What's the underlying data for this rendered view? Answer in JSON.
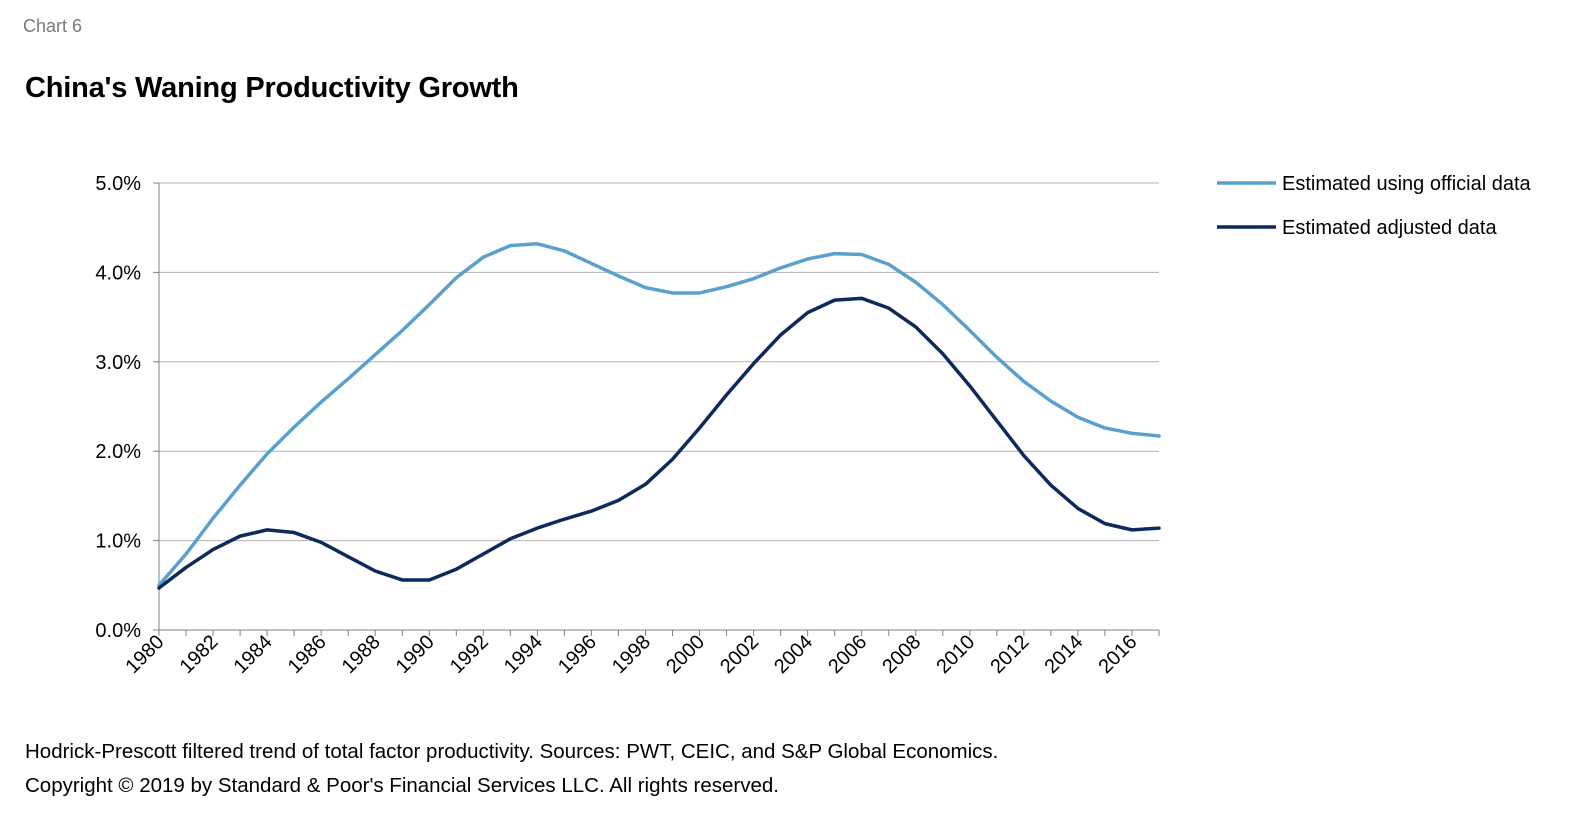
{
  "header": {
    "chart_label": "Chart 6",
    "title": "China's Waning Productivity Growth"
  },
  "footer": {
    "note": "Hodrick-Prescott filtered trend of total factor productivity. Sources: PWT, CEIC, and S&P Global Economics.",
    "copyright": "Copyright © 2019 by Standard & Poor's Financial Services LLC. All rights reserved."
  },
  "colors": {
    "official": "#5aa0cc",
    "adjusted": "#0c2a5b",
    "grid": "#b3b3b3",
    "axis": "#808080"
  },
  "chart_data": {
    "type": "line",
    "title": "China's Waning Productivity Growth",
    "xlabel": "",
    "ylabel": "",
    "ylim": [
      0,
      5
    ],
    "grid": true,
    "legend_position": "top-right",
    "x": [
      1980,
      1981,
      1982,
      1983,
      1984,
      1985,
      1986,
      1987,
      1988,
      1989,
      1990,
      1991,
      1992,
      1993,
      1994,
      1995,
      1996,
      1997,
      1998,
      1999,
      2000,
      2001,
      2002,
      2003,
      2004,
      2005,
      2006,
      2007,
      2008,
      2009,
      2010,
      2011,
      2012,
      2013,
      2014,
      2015,
      2016,
      2017
    ],
    "x_tick_labels": [
      "1980",
      "1982",
      "1984",
      "1986",
      "1988",
      "1990",
      "1992",
      "1994",
      "1996",
      "1998",
      "2000",
      "2002",
      "2004",
      "2006",
      "2008",
      "2010",
      "2012",
      "2014",
      "2016"
    ],
    "y_ticks": [
      0,
      1,
      2,
      3,
      4,
      5
    ],
    "y_tick_labels": [
      "0.0%",
      "1.0%",
      "2.0%",
      "3.0%",
      "4.0%",
      "5.0%"
    ],
    "series": [
      {
        "name": "Estimated using official data",
        "values": [
          0.5,
          0.85,
          1.25,
          1.62,
          1.97,
          2.27,
          2.55,
          2.81,
          3.08,
          3.35,
          3.64,
          3.94,
          4.17,
          4.3,
          4.32,
          4.24,
          4.1,
          3.96,
          3.83,
          3.77,
          3.77,
          3.84,
          3.93,
          4.05,
          4.15,
          4.21,
          4.2,
          4.09,
          3.89,
          3.64,
          3.35,
          3.05,
          2.78,
          2.56,
          2.38,
          2.26,
          2.2,
          2.17
        ]
      },
      {
        "name": "Estimated adjusted data",
        "values": [
          0.47,
          0.7,
          0.9,
          1.05,
          1.12,
          1.09,
          0.98,
          0.82,
          0.66,
          0.56,
          0.56,
          0.68,
          0.85,
          1.02,
          1.14,
          1.24,
          1.33,
          1.45,
          1.63,
          1.91,
          2.26,
          2.63,
          2.98,
          3.3,
          3.55,
          3.69,
          3.71,
          3.6,
          3.39,
          3.09,
          2.73,
          2.34,
          1.95,
          1.62,
          1.36,
          1.19,
          1.12,
          1.14
        ]
      }
    ]
  }
}
